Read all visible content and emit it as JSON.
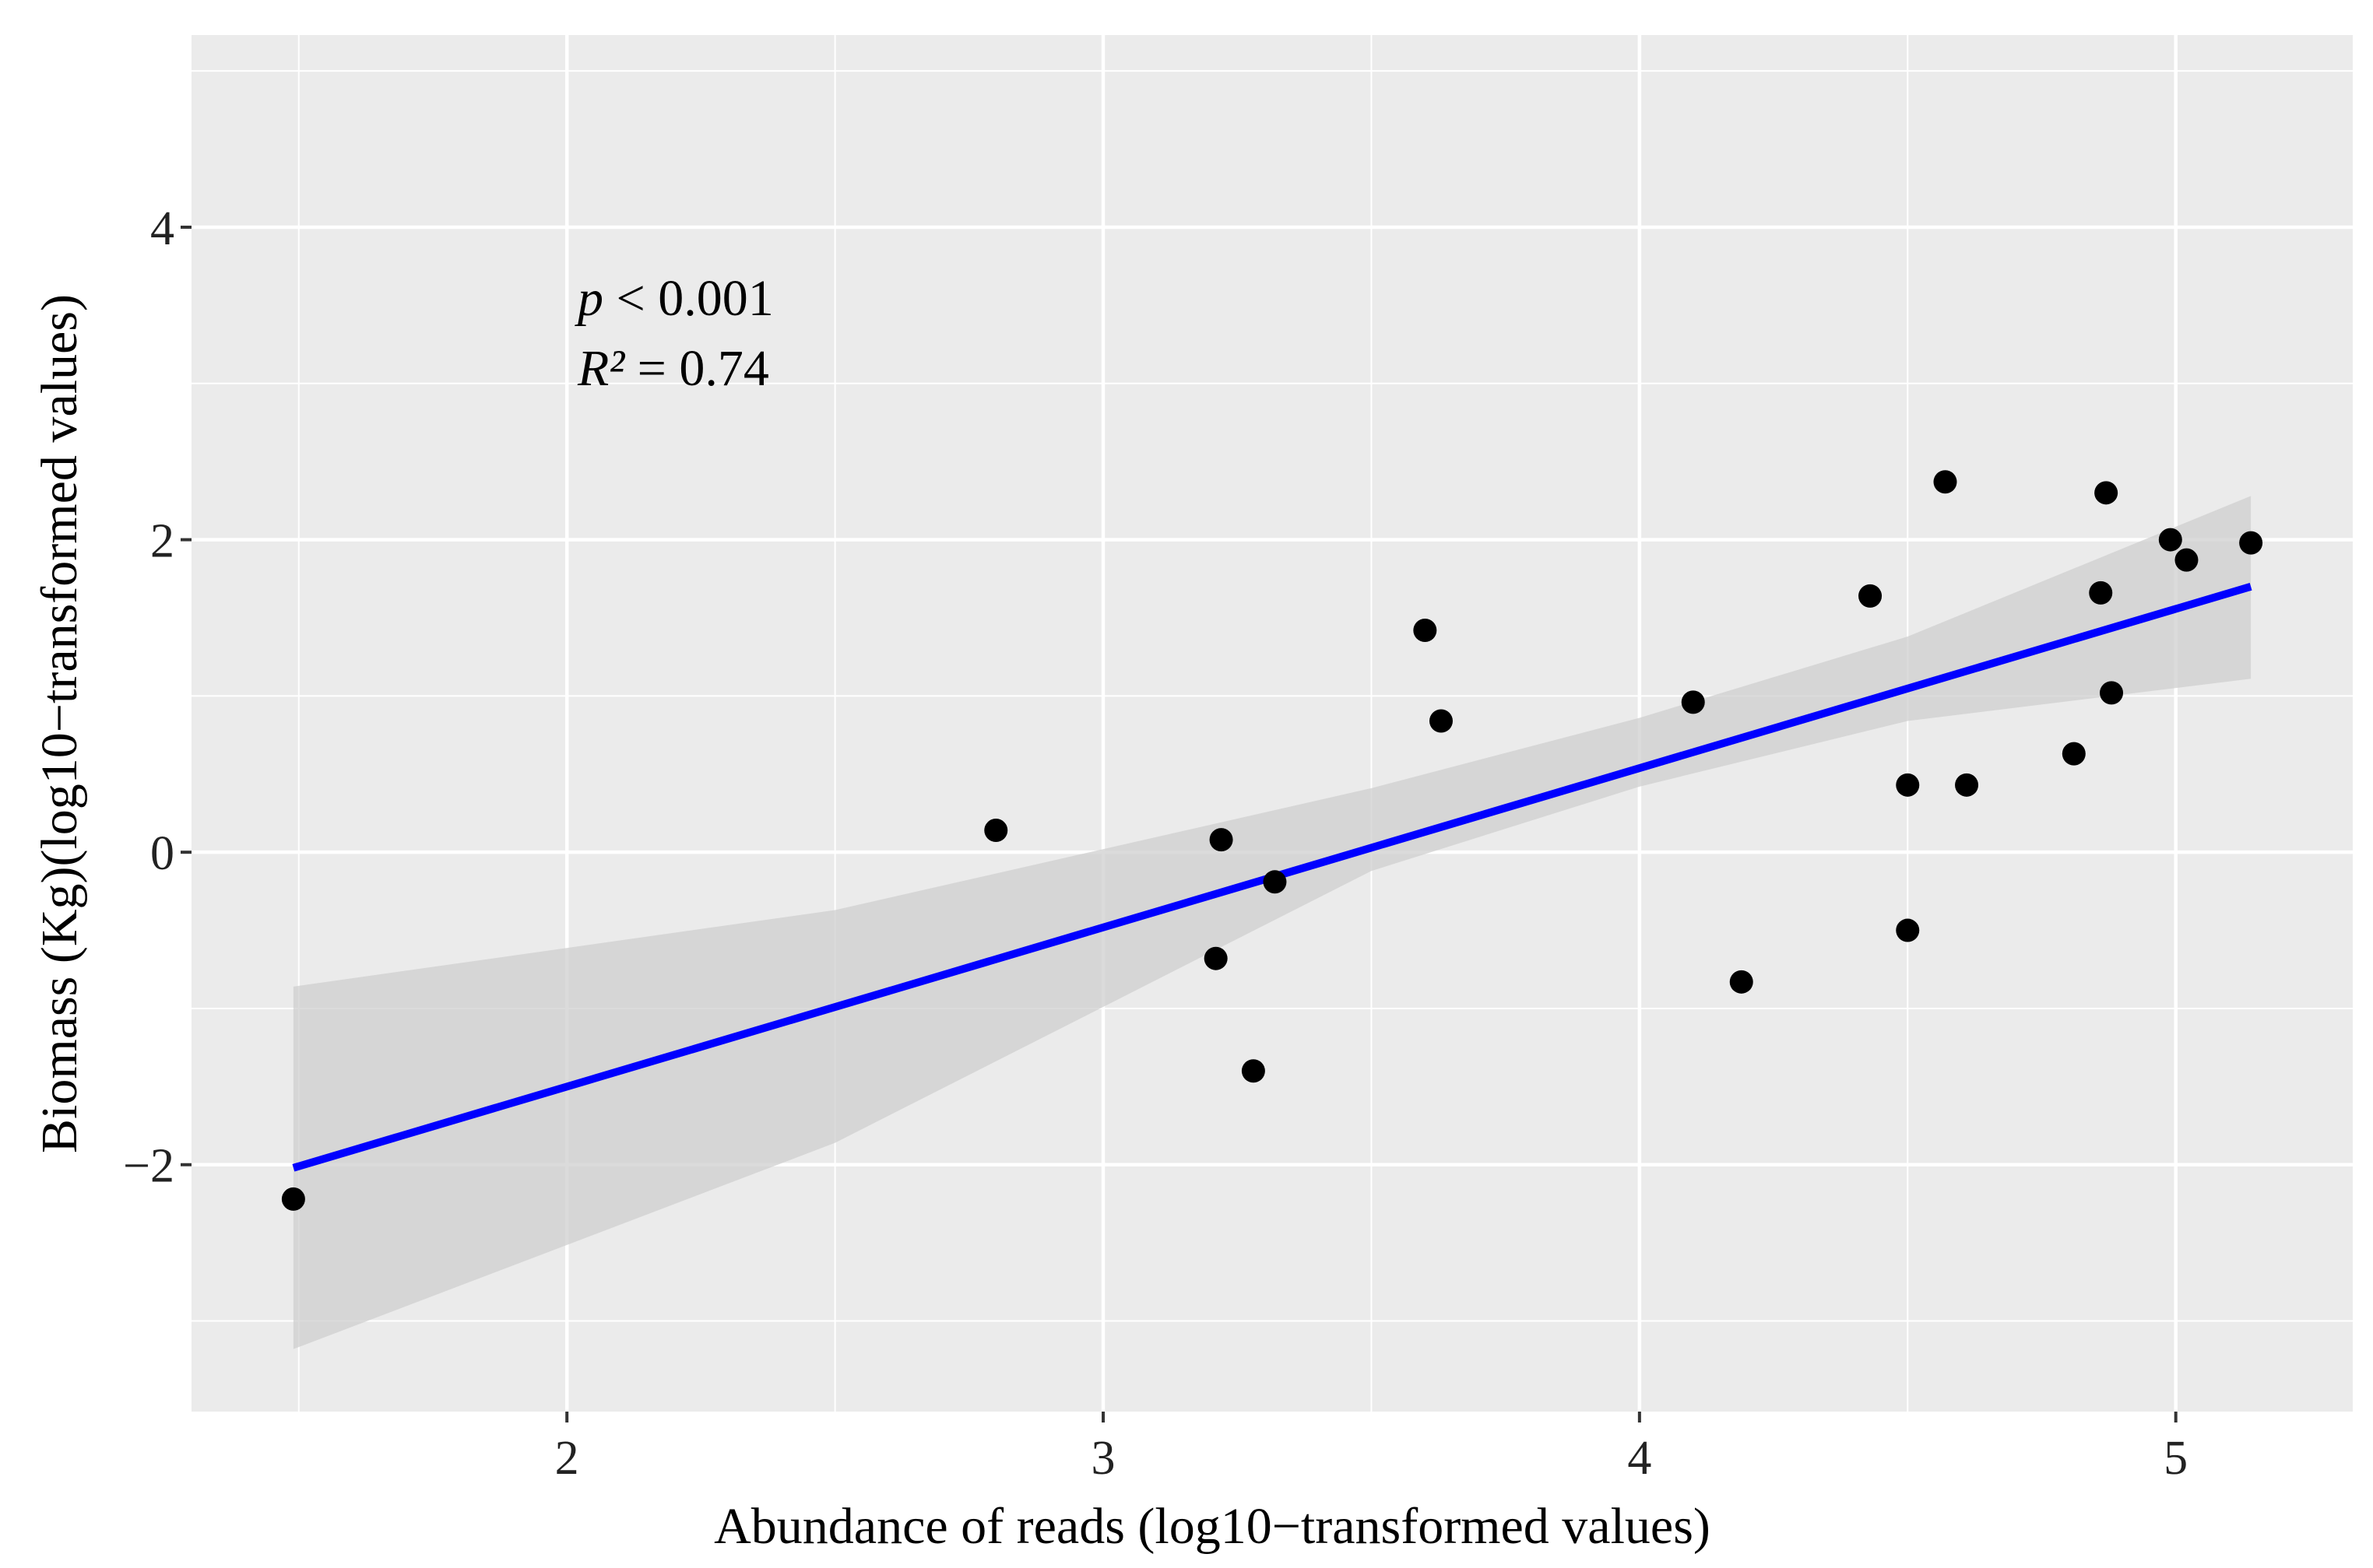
{
  "chart_data": {
    "type": "scatter",
    "title": "",
    "xlabel": "Abundance of reads (log10−transformed values)",
    "ylabel": "Biomass (Kg)(log10−transformed values)",
    "xlim": [
      1.3,
      5.33
    ],
    "ylim": [
      -3.58,
      5.23
    ],
    "x_ticks": [
      2,
      3,
      4,
      5
    ],
    "x_tick_labels": [
      "2",
      "3",
      "4",
      "5"
    ],
    "y_ticks": [
      -2,
      0,
      2,
      4
    ],
    "y_tick_labels": [
      "−2",
      "0",
      "2",
      "4"
    ],
    "x_minor_ticks": [
      1.5,
      2.5,
      3.5,
      4.5
    ],
    "y_minor_ticks": [
      -3,
      -1,
      1,
      3,
      5
    ],
    "grid": true,
    "points": [
      {
        "x": 1.49,
        "y": -2.22
      },
      {
        "x": 2.8,
        "y": 0.14
      },
      {
        "x": 3.22,
        "y": 0.08
      },
      {
        "x": 3.21,
        "y": -0.68
      },
      {
        "x": 3.28,
        "y": -1.4
      },
      {
        "x": 3.32,
        "y": -0.19
      },
      {
        "x": 3.6,
        "y": 1.42
      },
      {
        "x": 3.63,
        "y": 0.84
      },
      {
        "x": 4.1,
        "y": 0.96
      },
      {
        "x": 4.19,
        "y": -0.83
      },
      {
        "x": 4.43,
        "y": 1.64
      },
      {
        "x": 4.5,
        "y": 0.43
      },
      {
        "x": 4.5,
        "y": -0.5
      },
      {
        "x": 4.57,
        "y": 2.37
      },
      {
        "x": 4.61,
        "y": 0.43
      },
      {
        "x": 4.81,
        "y": 0.63
      },
      {
        "x": 4.86,
        "y": 1.66
      },
      {
        "x": 4.87,
        "y": 2.3
      },
      {
        "x": 4.88,
        "y": 1.02
      },
      {
        "x": 4.99,
        "y": 2.0
      },
      {
        "x": 5.02,
        "y": 1.87
      },
      {
        "x": 5.14,
        "y": 1.98
      }
    ],
    "regression_line": {
      "x": [
        1.49,
        5.14
      ],
      "y": [
        -2.02,
        1.7
      ],
      "color": "#0000ff"
    },
    "confidence_band": {
      "x": [
        1.49,
        2.5,
        3.5,
        4.0,
        4.5,
        5.14
      ],
      "lower": [
        -3.18,
        -1.86,
        -0.12,
        0.42,
        0.84,
        1.11
      ],
      "upper": [
        -0.86,
        -0.37,
        0.41,
        0.86,
        1.38,
        2.28
      ]
    },
    "annotations": {
      "p_symbol": "p",
      "p_text": " < 0.001",
      "r2_symbol": "R²",
      "r2_text": " = 0.74"
    },
    "colors": {
      "panel": "#ebebeb",
      "grid": "#ffffff",
      "point": "#000000",
      "line": "#0000ff",
      "band": "#cfcfcf"
    }
  }
}
